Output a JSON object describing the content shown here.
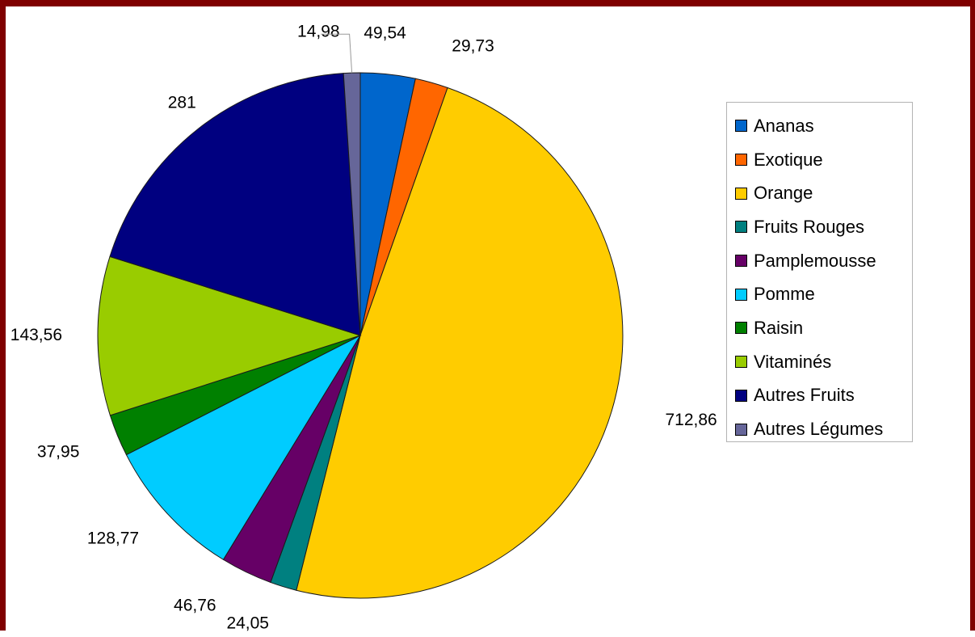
{
  "chart_data": {
    "type": "pie",
    "title": "",
    "categories": [
      "Ananas",
      "Exotique",
      "Orange",
      "Fruits Rouges",
      "Pamplemousse",
      "Pomme",
      "Raisin",
      "Vitaminés",
      "Autres Fruits",
      "Autres Légumes"
    ],
    "values": [
      49.54,
      29.73,
      712.86,
      24.05,
      46.76,
      128.77,
      37.95,
      143.56,
      281,
      14.98
    ],
    "value_labels": [
      "49,54",
      "29,73",
      "712,86",
      "24,05",
      "46,76",
      "128,77",
      "37,95",
      "143,56",
      "281",
      "14,98"
    ],
    "colors": [
      "#0066cc",
      "#ff6600",
      "#ffcc00",
      "#008080",
      "#660066",
      "#00ccff",
      "#008000",
      "#99cc00",
      "#000080",
      "#666699"
    ],
    "start": "top, clockwise",
    "legend_position": "right"
  }
}
